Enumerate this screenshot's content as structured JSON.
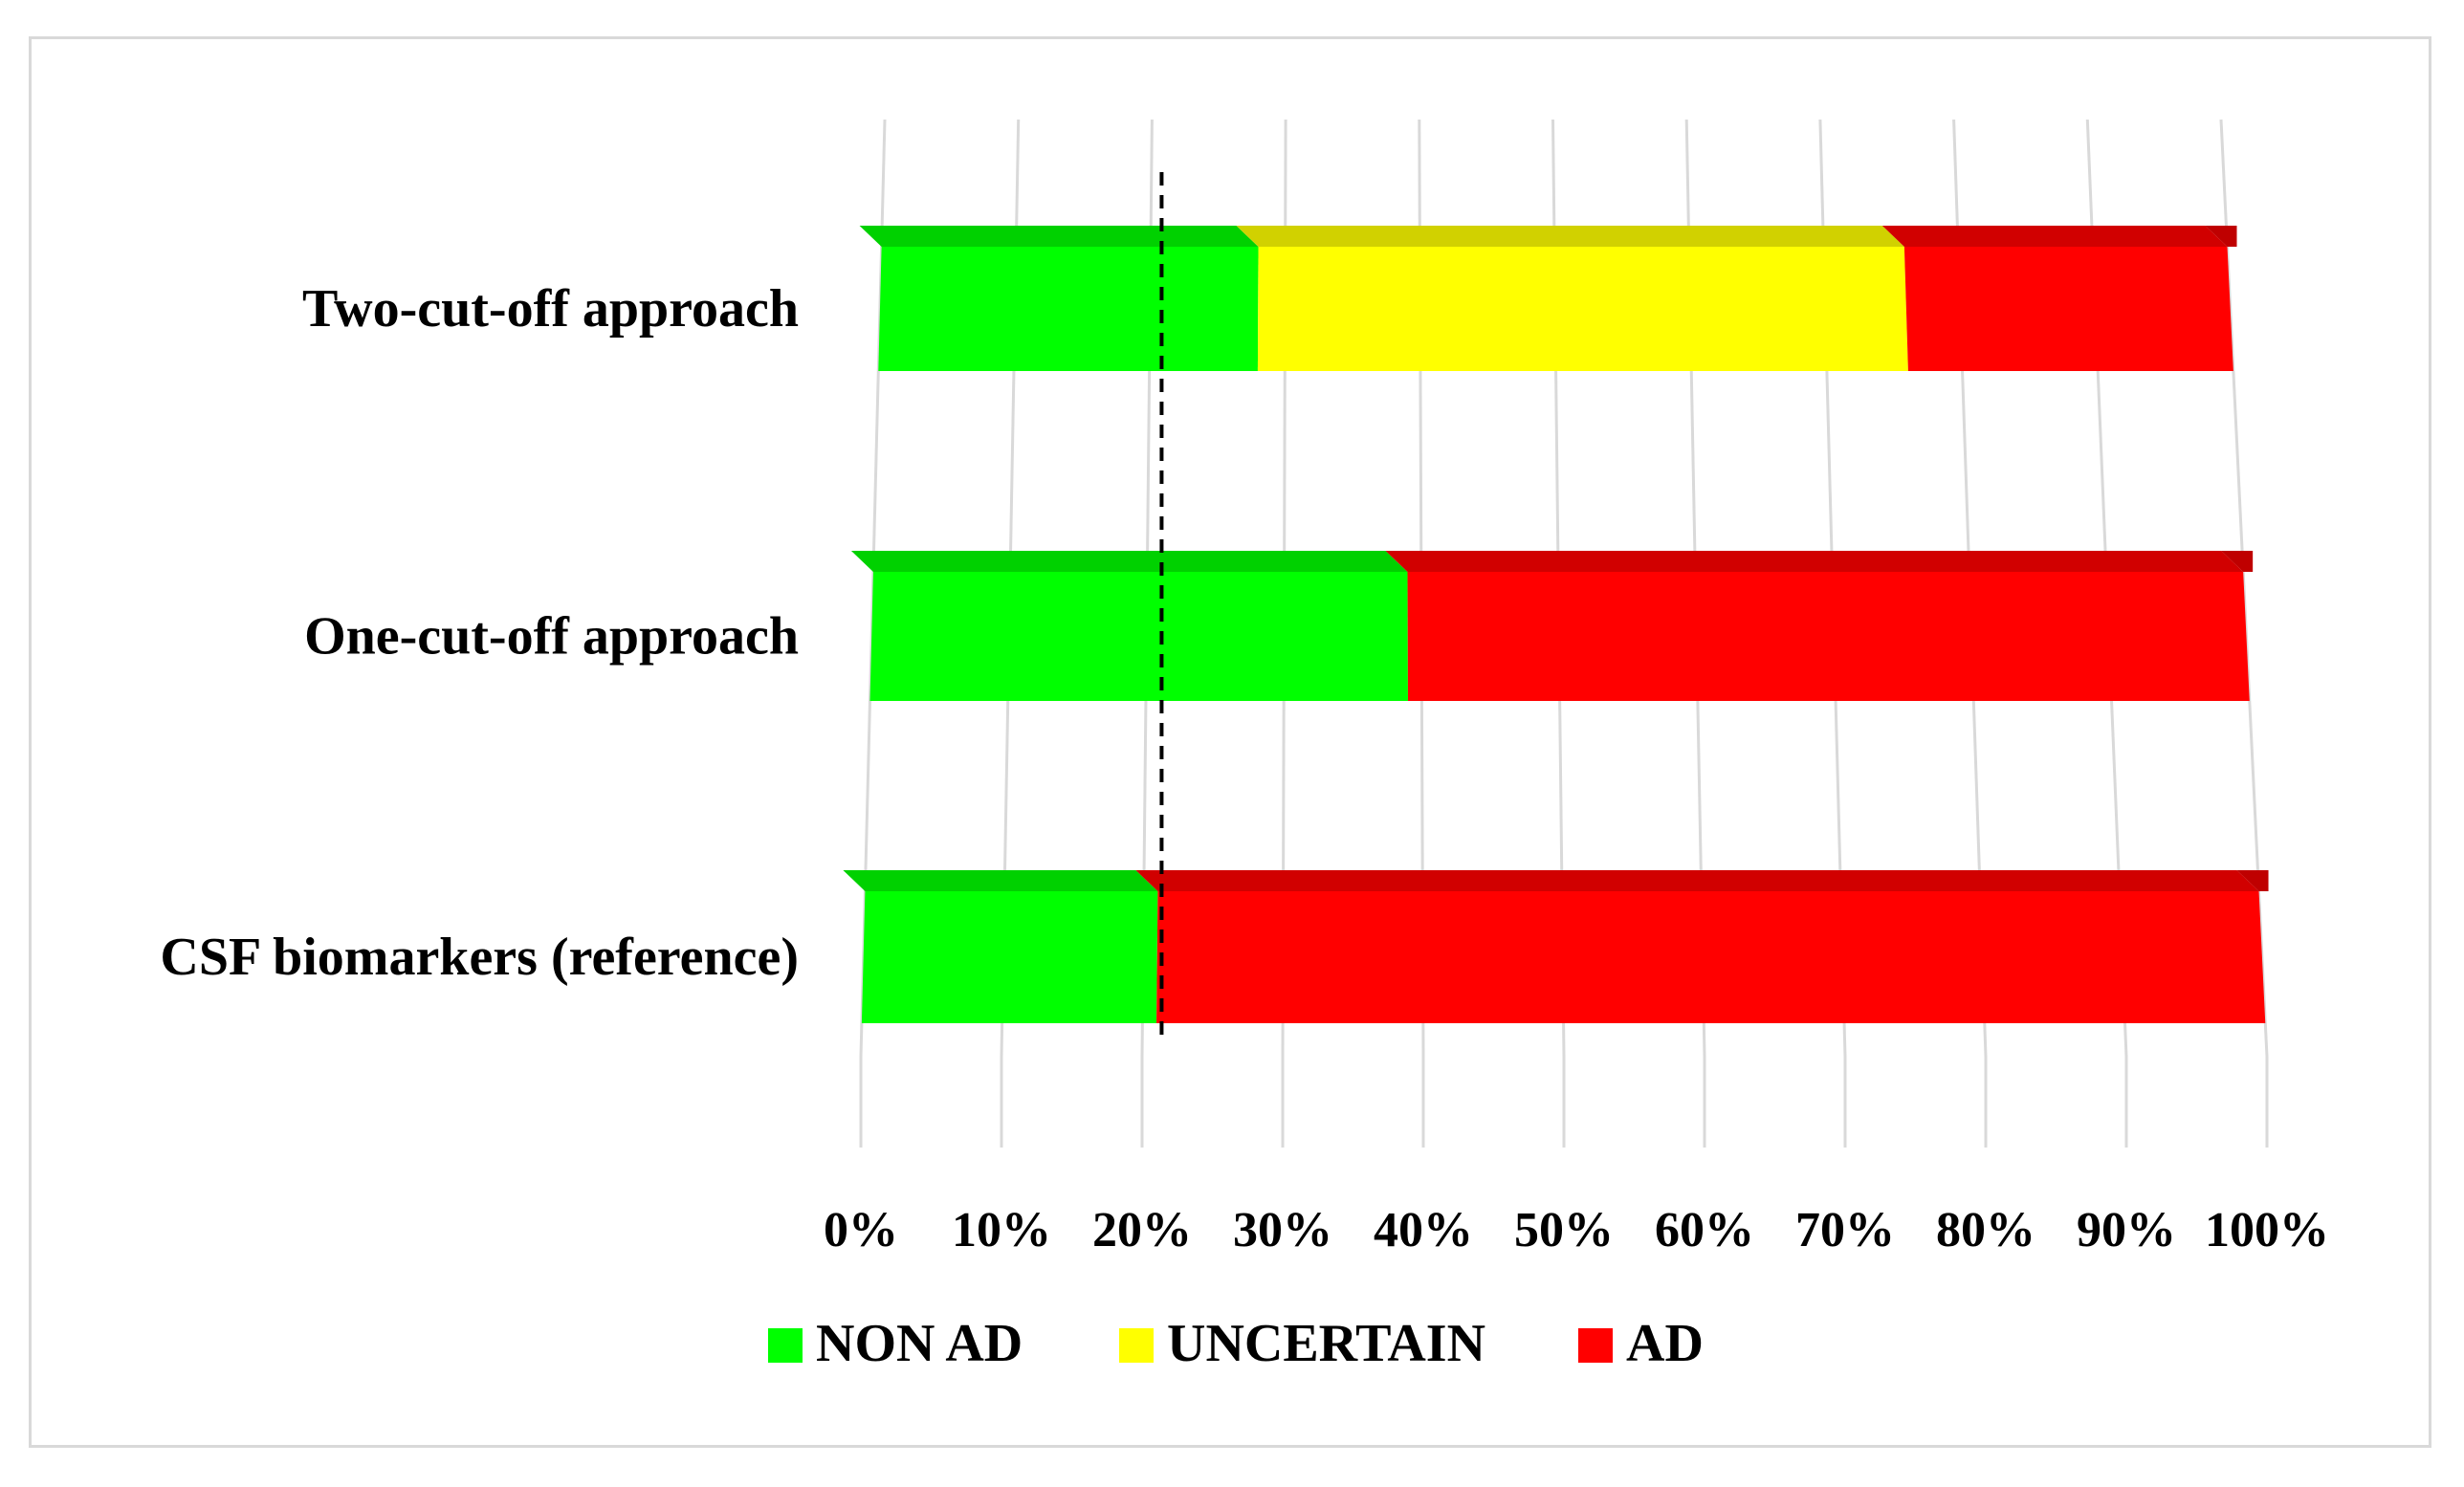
{
  "chart_data": {
    "type": "bar",
    "orientation": "horizontal",
    "stacked": "100%",
    "three_d": true,
    "categories": [
      "Two-cut-off approach",
      "One-cut-off approach",
      "CSF biomarkers (reference)"
    ],
    "series": [
      {
        "name": "NON AD",
        "color": "#00FF00",
        "values": [
          28,
          39,
          21
        ]
      },
      {
        "name": "UNCERTAIN",
        "color": "#FFFF00",
        "values": [
          48,
          0,
          0
        ]
      },
      {
        "name": "AD",
        "color": "#FF0000",
        "values": [
          24,
          61,
          79
        ]
      }
    ],
    "xticks": [
      "0%",
      "10%",
      "20%",
      "30%",
      "40%",
      "50%",
      "60%",
      "70%",
      "80%",
      "90%",
      "100%"
    ],
    "xlim": [
      0,
      100
    ],
    "grid": true,
    "reference_line": {
      "value": 21,
      "style": "dashed"
    },
    "legend_position": "bottom"
  }
}
